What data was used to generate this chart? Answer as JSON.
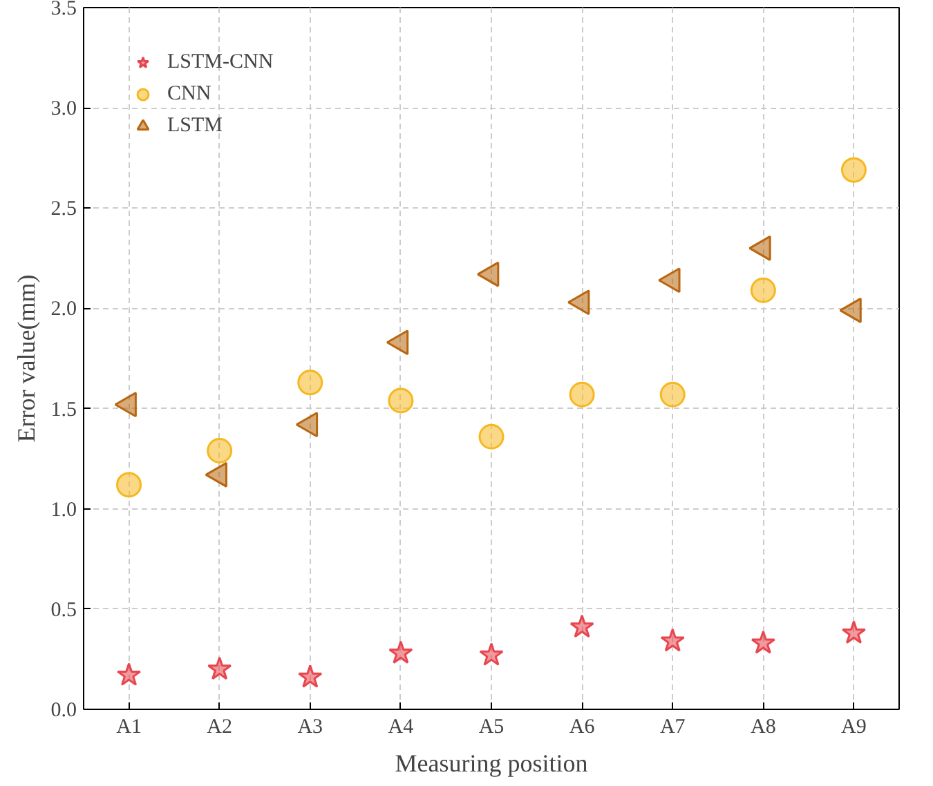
{
  "chart_data": {
    "type": "scatter",
    "xlabel": "Measuring position",
    "ylabel": "Error value(mm)",
    "categories": [
      "A1",
      "A2",
      "A3",
      "A4",
      "A5",
      "A6",
      "A7",
      "A8",
      "A9"
    ],
    "ylim": [
      0,
      3.5
    ],
    "yticks": [
      {
        "value": 0,
        "label": "0.0"
      },
      {
        "value": 0.5,
        "label": "0.5"
      },
      {
        "value": 1,
        "label": "1.0"
      },
      {
        "value": 1.5,
        "label": "1.5"
      },
      {
        "value": 2,
        "label": "2.0"
      },
      {
        "value": 2.5,
        "label": "2.5"
      },
      {
        "value": 3,
        "label": "3.0"
      },
      {
        "value": 3.5,
        "label": "3.5"
      }
    ],
    "grid": true,
    "legend": "top left",
    "series": [
      {
        "name": "LSTM-CNN",
        "color": "#e8464f",
        "marker": "star",
        "values": [
          0.17,
          0.2,
          0.16,
          0.28,
          0.27,
          0.41,
          0.34,
          0.33,
          0.38
        ]
      },
      {
        "name": "CNN",
        "color": "#f5b820",
        "marker": "circle",
        "values": [
          1.12,
          1.29,
          1.63,
          1.54,
          1.36,
          1.57,
          1.57,
          2.09,
          2.69
        ]
      },
      {
        "name": "LSTM",
        "color": "#b8660f",
        "marker": "triangle",
        "values": [
          1.52,
          1.17,
          1.42,
          1.83,
          2.17,
          2.03,
          2.14,
          2.3,
          1.99
        ]
      }
    ]
  }
}
